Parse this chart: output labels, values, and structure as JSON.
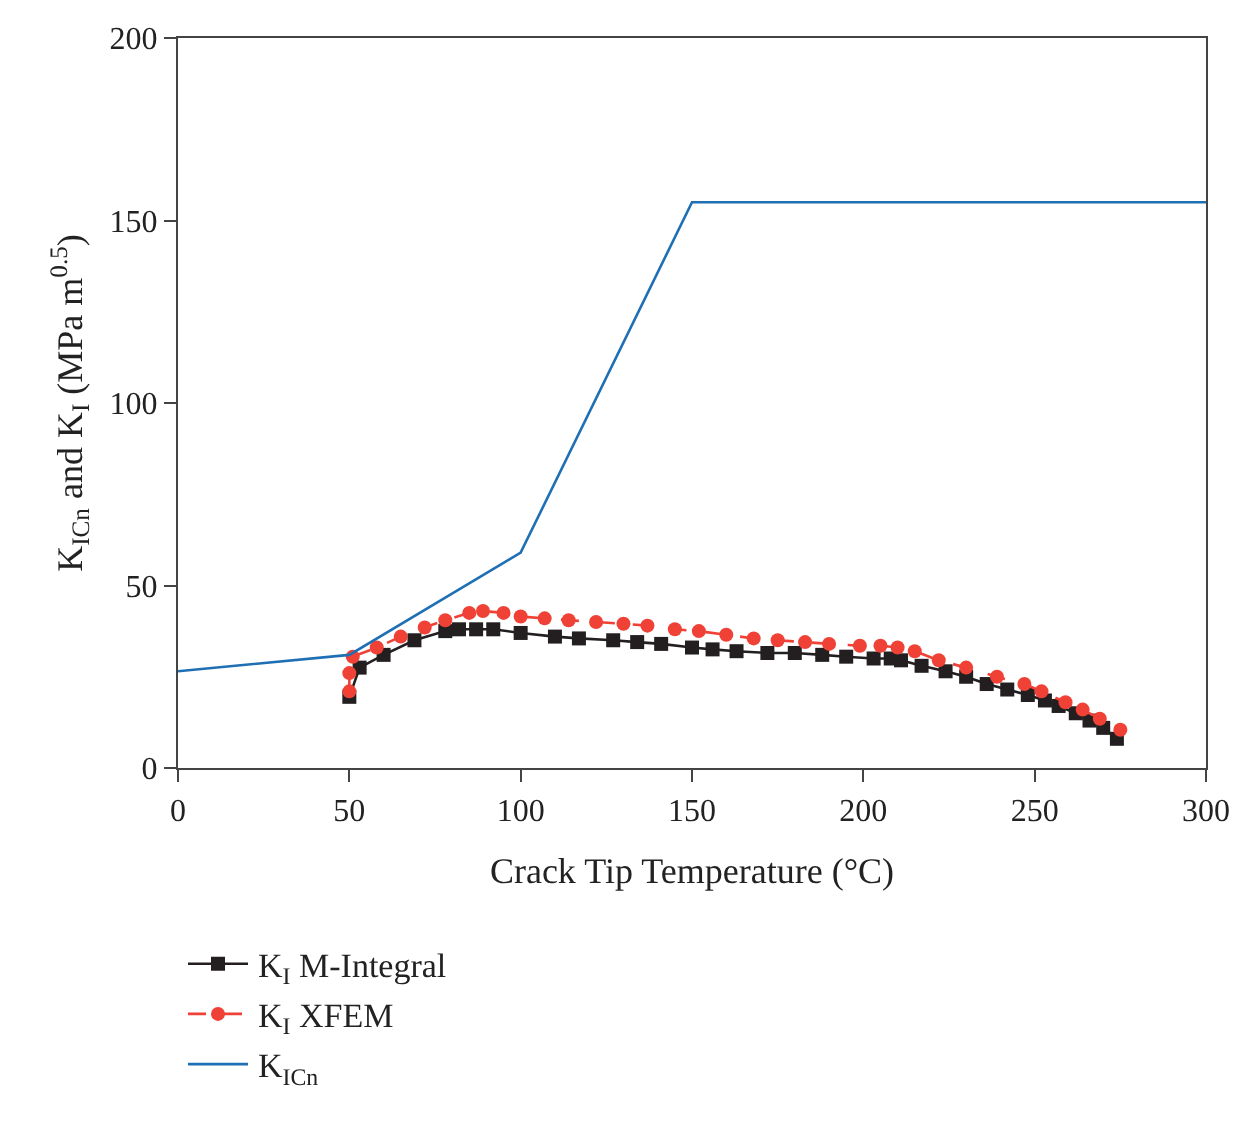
{
  "chart_data": {
    "type": "line",
    "xlabel": "Crack Tip Temperature (°C)",
    "ylabel": "K$_{ICn}$ and K$_{I}$ (MPa m$^{0.5}$)",
    "xlim": [
      0,
      300
    ],
    "xticks": [
      0,
      50,
      100,
      150,
      200,
      250,
      300
    ],
    "ylim": [
      0,
      200
    ],
    "yticks": [
      0,
      50,
      100,
      150,
      200
    ],
    "legend": "bottom left",
    "series": [
      {
        "name": "K$_{I}$ M-Integral",
        "color": "#231f20",
        "marker": "square",
        "line_style": "solid",
        "x": [
          50,
          53,
          60,
          69,
          78,
          82,
          87,
          92,
          100,
          110,
          117,
          127,
          134,
          141,
          150,
          156,
          163,
          172,
          180,
          188,
          195,
          203,
          208,
          211,
          217,
          224,
          230,
          236,
          242,
          248,
          253,
          257,
          262,
          266,
          270,
          274
        ],
        "values": [
          19.5,
          27.5,
          31,
          35,
          37.5,
          38,
          38,
          38,
          37,
          36,
          35.5,
          35,
          34.5,
          34,
          33,
          32.5,
          32,
          31.5,
          31.5,
          31,
          30.5,
          30,
          30,
          29.5,
          28,
          26.5,
          25,
          23,
          21.5,
          20,
          18.5,
          17,
          15,
          13,
          11,
          8
        ]
      },
      {
        "name": "K$_{I}$ XFEM",
        "color": "#ef4136",
        "marker": "circle",
        "line_style": "dashed",
        "x": [
          50,
          50,
          51,
          58,
          65,
          72,
          78,
          85,
          89,
          95,
          100,
          107,
          114,
          122,
          130,
          137,
          145,
          152,
          160,
          168,
          175,
          183,
          190,
          199,
          205,
          210,
          215,
          222,
          230,
          239,
          247,
          252,
          259,
          264,
          269,
          275
        ],
        "values": [
          21,
          26,
          30.5,
          33,
          36,
          38.5,
          40.5,
          42.5,
          43,
          42.5,
          41.5,
          41,
          40.5,
          40,
          39.5,
          39,
          38,
          37.5,
          36.5,
          35.5,
          35,
          34.5,
          34,
          33.5,
          33.5,
          33,
          32,
          29.5,
          27.5,
          25,
          23,
          21,
          18,
          16,
          13.5,
          10.5
        ]
      },
      {
        "name": "K$_{ICn}$",
        "color": "#1f6fb5",
        "marker": "none",
        "line_style": "solid",
        "x": [
          0,
          50,
          100,
          150,
          300
        ],
        "values": [
          26.5,
          31,
          59,
          155,
          155
        ]
      }
    ]
  }
}
